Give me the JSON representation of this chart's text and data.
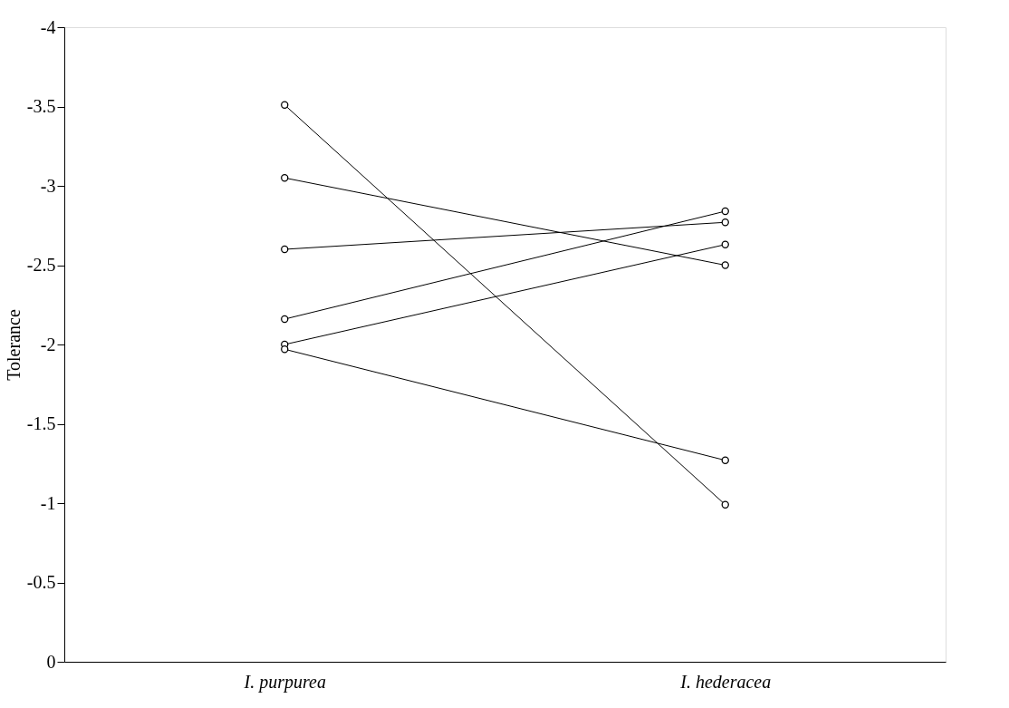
{
  "chart_data": {
    "type": "line",
    "ylabel": "Tolerance",
    "categories": [
      "I. purpurea",
      "I. hederacea"
    ],
    "series": [
      {
        "color": "#000000",
        "values": [
          -3.51,
          -0.99
        ]
      },
      {
        "color": "#000000",
        "values": [
          -3.05,
          -2.5
        ]
      },
      {
        "color": "#000000",
        "values": [
          -2.6,
          -2.77
        ]
      },
      {
        "color": "#000000",
        "values": [
          -2.16,
          -2.84
        ]
      },
      {
        "color": "#000000",
        "values": [
          -2.0,
          -2.63
        ]
      },
      {
        "color": "#000000",
        "values": [
          -1.97,
          -1.27
        ]
      }
    ],
    "ylim": [
      0,
      -4
    ],
    "yticks": [
      0,
      -0.5,
      -1,
      -1.5,
      -2,
      -2.5,
      -3,
      -3.5,
      -4
    ],
    "marker": "circle",
    "line_style": "solid",
    "grid": false,
    "legend": false
  }
}
